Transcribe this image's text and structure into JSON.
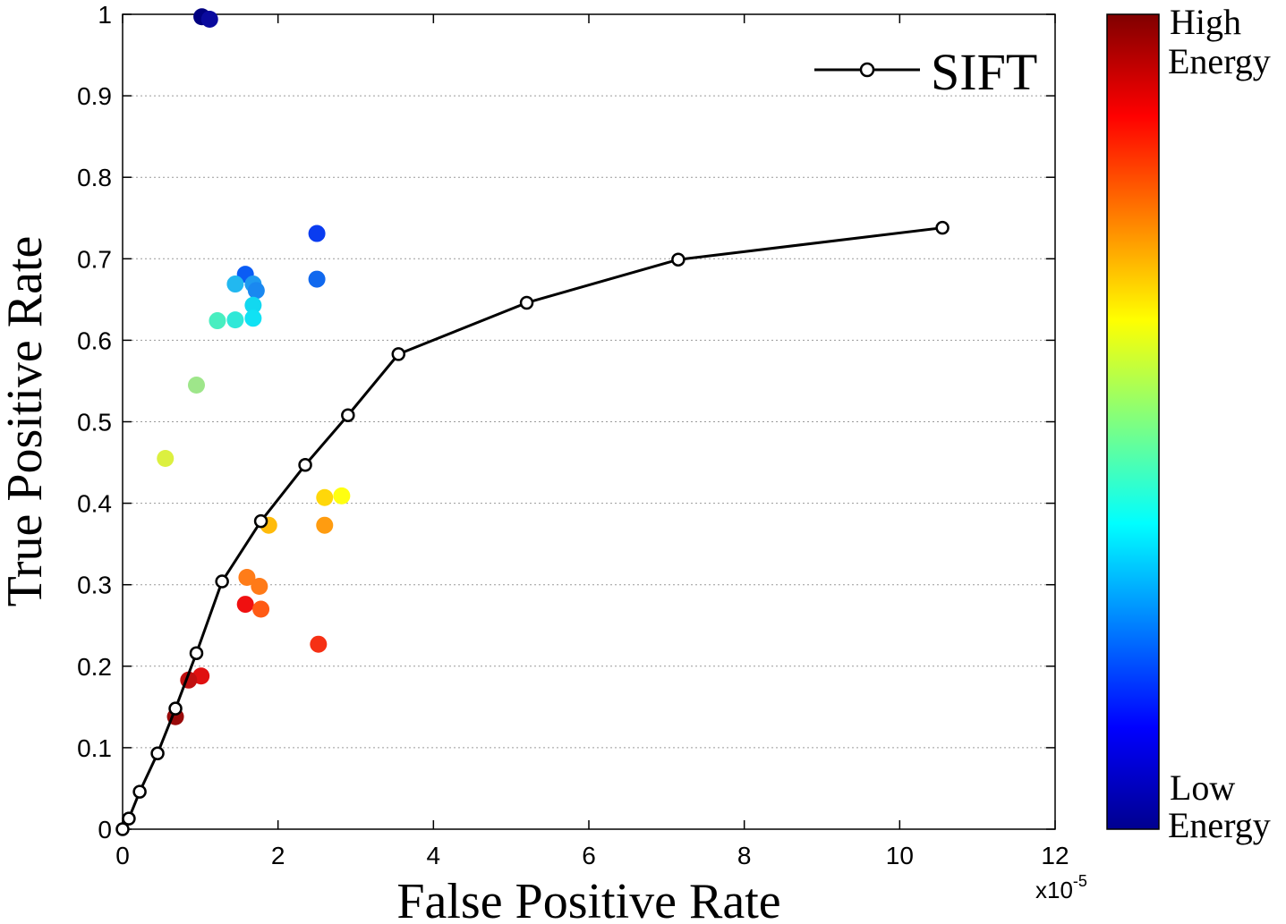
{
  "chart_data": {
    "type": "scatter",
    "xlabel": "False Positive Rate",
    "ylabel": "True Positive Rate",
    "x_exponent_label": "x10",
    "x_exponent_power": "-5",
    "xlim": [
      0,
      12
    ],
    "ylim": [
      0,
      1
    ],
    "x_ticks": [
      "0",
      "2",
      "4",
      "6",
      "8",
      "10",
      "12"
    ],
    "y_ticks": [
      "0",
      "0.1",
      "0.2",
      "0.3",
      "0.4",
      "0.5",
      "0.6",
      "0.7",
      "0.8",
      "0.9",
      "1"
    ],
    "grid": "horizontal dotted",
    "legend": {
      "placement": "top-right",
      "label": "SIFT"
    },
    "colorbar": {
      "colormap": "jet",
      "top_label": [
        "High",
        "Energy"
      ],
      "bottom_label": [
        "Low",
        "Energy"
      ]
    },
    "line_series": {
      "name": "SIFT",
      "color": "#000000",
      "marker": "open-circle",
      "points": [
        [
          0.0,
          0.0
        ],
        [
          0.08,
          0.013
        ],
        [
          0.22,
          0.046
        ],
        [
          0.45,
          0.093
        ],
        [
          0.68,
          0.148
        ],
        [
          0.95,
          0.216
        ],
        [
          1.28,
          0.304
        ],
        [
          1.78,
          0.378
        ],
        [
          2.35,
          0.447
        ],
        [
          2.9,
          0.508
        ],
        [
          3.55,
          0.583
        ],
        [
          5.2,
          0.646
        ],
        [
          7.15,
          0.699
        ],
        [
          10.55,
          0.738
        ]
      ]
    },
    "scatter_series": {
      "marker": "filled-circle",
      "points": [
        {
          "x": 1.02,
          "y": 0.997,
          "color": "#000080"
        },
        {
          "x": 1.12,
          "y": 0.994,
          "color": "#0a0a9e"
        },
        {
          "x": 2.5,
          "y": 0.731,
          "color": "#0a3cf0"
        },
        {
          "x": 1.58,
          "y": 0.681,
          "color": "#0a5cf5"
        },
        {
          "x": 2.5,
          "y": 0.675,
          "color": "#1068ee"
        },
        {
          "x": 1.45,
          "y": 0.669,
          "color": "#22b8f0"
        },
        {
          "x": 1.68,
          "y": 0.669,
          "color": "#1f9af0"
        },
        {
          "x": 1.72,
          "y": 0.661,
          "color": "#1a88f0"
        },
        {
          "x": 1.68,
          "y": 0.643,
          "color": "#12d8f0"
        },
        {
          "x": 1.68,
          "y": 0.627,
          "color": "#10e2f4"
        },
        {
          "x": 1.45,
          "y": 0.625,
          "color": "#30e8d8"
        },
        {
          "x": 1.22,
          "y": 0.624,
          "color": "#48eec0"
        },
        {
          "x": 0.95,
          "y": 0.545,
          "color": "#9ee68a"
        },
        {
          "x": 0.55,
          "y": 0.455,
          "color": "#dcf040"
        },
        {
          "x": 2.82,
          "y": 0.409,
          "color": "#ffff10"
        },
        {
          "x": 2.6,
          "y": 0.407,
          "color": "#ffd70a"
        },
        {
          "x": 1.88,
          "y": 0.373,
          "color": "#ffbb0a"
        },
        {
          "x": 2.6,
          "y": 0.373,
          "color": "#ff9c10"
        },
        {
          "x": 1.6,
          "y": 0.309,
          "color": "#ff7c18"
        },
        {
          "x": 1.76,
          "y": 0.298,
          "color": "#ff7a18"
        },
        {
          "x": 1.58,
          "y": 0.276,
          "color": "#f01010"
        },
        {
          "x": 1.78,
          "y": 0.27,
          "color": "#ff5a14"
        },
        {
          "x": 2.52,
          "y": 0.227,
          "color": "#f63014"
        },
        {
          "x": 1.01,
          "y": 0.188,
          "color": "#e01010"
        },
        {
          "x": 0.85,
          "y": 0.183,
          "color": "#c01010"
        },
        {
          "x": 0.68,
          "y": 0.138,
          "color": "#9a0a0a"
        }
      ]
    }
  }
}
